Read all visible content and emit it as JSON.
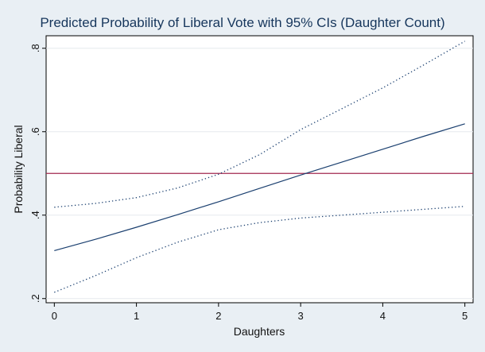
{
  "chart_data": {
    "type": "line",
    "title": "Predicted Probability of Liberal Vote with 95% CIs (Daughter Count)",
    "xlabel": "Daughters",
    "ylabel": "Probability Liberal",
    "xlim": [
      -0.1,
      5.1
    ],
    "ylim": [
      0.19,
      0.83
    ],
    "xticks": [
      0,
      1,
      2,
      3,
      4,
      5
    ],
    "xtick_labels": [
      "0",
      "1",
      "2",
      "3",
      "4",
      "5"
    ],
    "yticks": [
      0.2,
      0.4,
      0.6,
      0.8
    ],
    "ytick_labels": [
      ".2",
      ".4",
      ".6",
      ".8"
    ],
    "grid": "horizontal",
    "legend": "none",
    "x": [
      0,
      0.5,
      1,
      1.5,
      2,
      2.5,
      3,
      3.5,
      4,
      4.5,
      5
    ],
    "series": [
      {
        "role": "prediction",
        "style": "solid",
        "color": "#1a3f6f",
        "values": [
          0.315,
          0.342,
          0.371,
          0.401,
          0.432,
          0.464,
          0.496,
          0.527,
          0.558,
          0.589,
          0.619
        ]
      },
      {
        "role": "upper-ci",
        "style": "dotted",
        "color": "#1a3f6f",
        "values": [
          0.419,
          0.428,
          0.442,
          0.465,
          0.498,
          0.545,
          0.605,
          0.655,
          0.705,
          0.76,
          0.817
        ]
      },
      {
        "role": "lower-ci",
        "style": "dotted",
        "color": "#1a3f6f",
        "values": [
          0.215,
          0.255,
          0.298,
          0.335,
          0.365,
          0.382,
          0.393,
          0.4,
          0.407,
          0.414,
          0.421
        ]
      }
    ],
    "reference_line": {
      "y": 0.5,
      "color": "#a3294f"
    }
  }
}
